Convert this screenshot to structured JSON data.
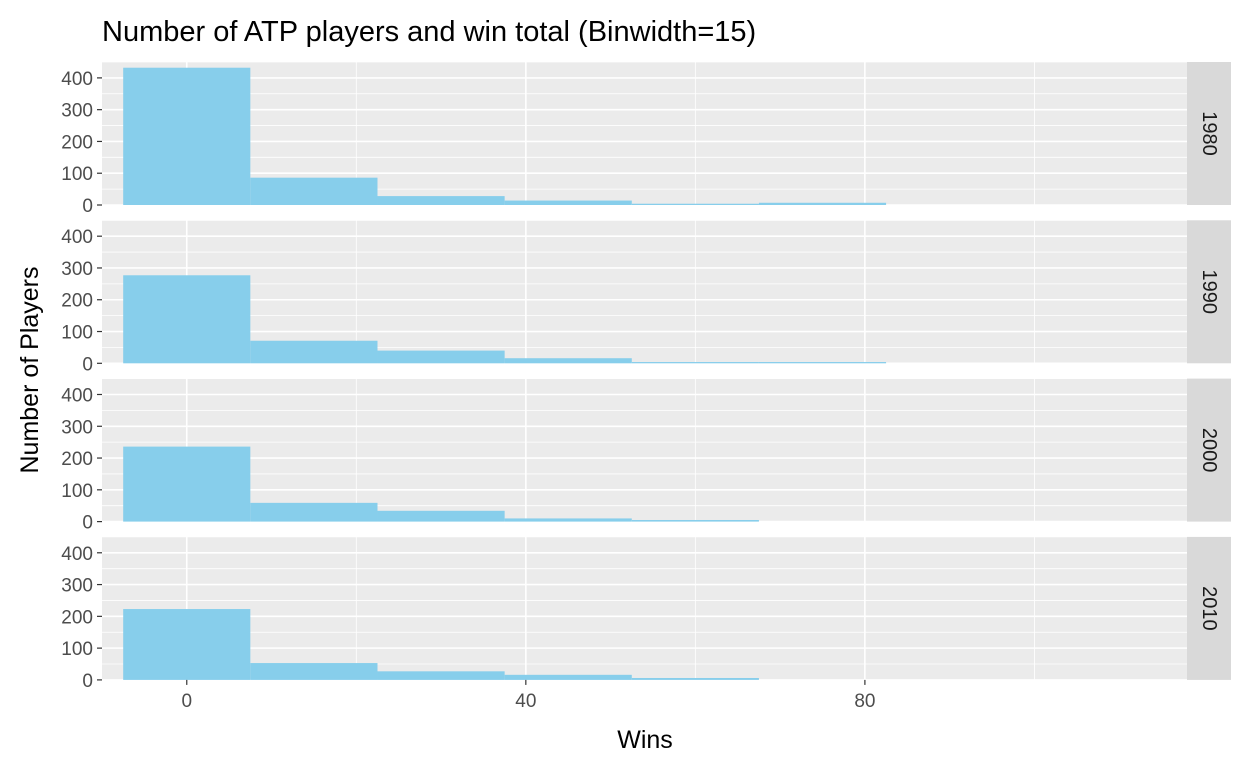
{
  "chart_data": {
    "type": "bar",
    "subtype": "faceted-histogram",
    "title": "Number of ATP players and win total (Binwidth=15)",
    "xlabel": "Wins",
    "ylabel": "Number of Players",
    "binwidth": 15,
    "bin_edges": [
      -7.5,
      7.5,
      22.5,
      37.5,
      52.5,
      67.5,
      82.5
    ],
    "xlim": [
      -10,
      118
    ],
    "ylim": [
      0,
      450
    ],
    "x_ticks": [
      0,
      40,
      80
    ],
    "x_minor_ticks": [
      -20,
      20,
      60,
      100
    ],
    "y_ticks": [
      0,
      100,
      200,
      300,
      400
    ],
    "y_minor_ticks": [
      50,
      150,
      250,
      350,
      450
    ],
    "fill_color": "#87CEEB",
    "panel_background": "#EBEBEB",
    "strip_background": "#D9D9D9",
    "grid": true,
    "facets": [
      {
        "label": "1980",
        "counts": [
          432,
          86,
          28,
          14,
          4,
          7
        ]
      },
      {
        "label": "1990",
        "counts": [
          277,
          71,
          40,
          16,
          4,
          4
        ]
      },
      {
        "label": "2000",
        "counts": [
          236,
          59,
          34,
          10,
          5,
          0
        ]
      },
      {
        "label": "2010",
        "counts": [
          223,
          53,
          27,
          16,
          6,
          0
        ]
      }
    ]
  }
}
